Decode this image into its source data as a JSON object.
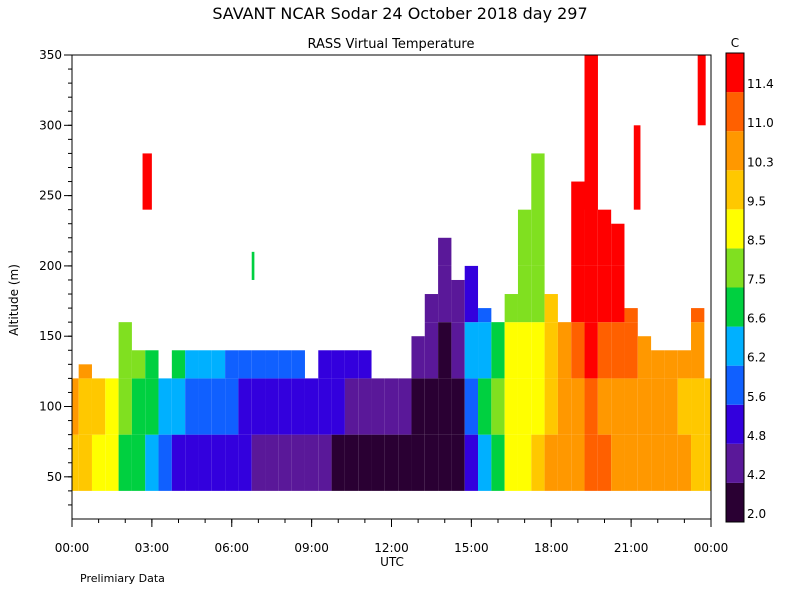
{
  "chart_data": {
    "type": "heatmap",
    "title": "SAVANT  NCAR Sodar  24 October 2018  day 297",
    "subtitle": "RASS Virtual Temperature",
    "xlabel": "UTC",
    "ylabel": "Altitude (m)",
    "footnote": "Prelimiary Data",
    "x_ticks": [
      "00:00",
      "03:00",
      "06:00",
      "09:00",
      "12:00",
      "15:00",
      "18:00",
      "21:00",
      "00:00"
    ],
    "xlim_hours": [
      0,
      24
    ],
    "y_ticks": [
      "50",
      "100",
      "150",
      "200",
      "250",
      "300",
      "350"
    ],
    "ylim": [
      20,
      350
    ],
    "colorbar": {
      "unit": "C",
      "labels": [
        "2.0",
        "4.2",
        "4.8",
        "5.6",
        "6.2",
        "6.6",
        "7.5",
        "8.5",
        "9.5",
        "10.3",
        "11.0",
        "11.4"
      ],
      "colors": [
        "#2a0033",
        "#5a1899",
        "#3300dd",
        "#1060ff",
        "#00b0ff",
        "#00d040",
        "#80e020",
        "#ffff00",
        "#ffc800",
        "#ff9800",
        "#ff6000",
        "#ff0000"
      ]
    },
    "grid": false,
    "columns_2h": [
      {
        "t": 0.0,
        "top": 120,
        "temps": [
          9.8,
          10.6,
          11.0,
          10.8
        ]
      },
      {
        "t": 0.5,
        "top": 130,
        "temps": [
          9.8,
          10.0,
          10.6,
          10.3
        ]
      },
      {
        "t": 1.0,
        "top": 120,
        "temps": [
          9.0,
          9.6,
          10.0,
          10.3
        ]
      },
      {
        "t": 1.5,
        "top": 120,
        "temps": [
          8.6,
          9.3,
          9.8,
          10.3
        ]
      },
      {
        "t": 2.0,
        "top": 160,
        "temps": [
          7.2,
          7.8,
          8.3,
          8.0
        ]
      },
      {
        "t": 2.5,
        "top": 140,
        "temps": [
          6.8,
          7.2,
          7.6,
          7.8
        ]
      },
      {
        "t": 3.0,
        "top": 140,
        "temps": [
          6.5,
          6.7,
          7.0,
          7.5
        ]
      },
      {
        "t": 3.5,
        "top": 120,
        "temps": [
          5.8,
          6.5,
          6.8,
          7.2
        ]
      },
      {
        "t": 4.0,
        "top": 140,
        "temps": [
          5.4,
          6.4,
          6.6,
          7.0
        ]
      },
      {
        "t": 4.5,
        "top": 140,
        "temps": [
          5.2,
          6.1,
          6.4,
          6.8
        ]
      },
      {
        "t": 5.0,
        "top": 140,
        "temps": [
          5.0,
          5.9,
          6.2,
          6.6
        ]
      },
      {
        "t": 5.5,
        "top": 140,
        "temps": [
          4.9,
          5.7,
          6.2,
          6.6
        ]
      },
      {
        "t": 6.0,
        "top": 140,
        "temps": [
          4.8,
          5.6,
          6.0,
          6.4
        ]
      },
      {
        "t": 6.5,
        "top": 140,
        "temps": [
          4.8,
          5.4,
          5.9,
          6.3
        ]
      },
      {
        "t": 7.0,
        "top": 140,
        "temps": [
          4.7,
          5.3,
          5.8,
          6.2
        ]
      },
      {
        "t": 7.5,
        "top": 140,
        "temps": [
          4.6,
          5.2,
          5.8,
          6.2
        ]
      },
      {
        "t": 8.0,
        "top": 140,
        "temps": [
          4.5,
          5.1,
          5.7,
          6.2
        ]
      },
      {
        "t": 8.5,
        "top": 140,
        "temps": [
          4.4,
          5.0,
          5.6,
          6.1
        ]
      },
      {
        "t": 9.0,
        "top": 120,
        "temps": [
          4.3,
          4.9,
          5.4,
          6.0
        ]
      },
      {
        "t": 9.5,
        "top": 140,
        "temps": [
          4.3,
          4.9,
          5.3,
          5.9
        ]
      },
      {
        "t": 10.0,
        "top": 140,
        "temps": [
          3.8,
          4.8,
          5.2,
          5.8
        ]
      },
      {
        "t": 10.5,
        "top": 140,
        "temps": [
          3.6,
          4.7,
          5.1,
          5.7
        ]
      },
      {
        "t": 11.0,
        "top": 140,
        "temps": [
          3.2,
          4.5,
          5.0,
          5.6
        ]
      },
      {
        "t": 11.5,
        "top": 120,
        "temps": [
          3.0,
          4.4,
          4.9,
          5.5
        ]
      },
      {
        "t": 12.0,
        "top": 120,
        "temps": [
          2.8,
          4.4,
          4.6,
          5.0
        ]
      },
      {
        "t": 12.5,
        "top": 120,
        "temps": [
          2.6,
          4.3,
          4.5,
          4.6
        ]
      },
      {
        "t": 13.0,
        "top": 150,
        "temps": [
          2.4,
          3.6,
          4.5,
          5.0
        ]
      },
      {
        "t": 13.5,
        "top": 180,
        "temps": [
          2.3,
          2.8,
          4.4,
          4.6
        ]
      },
      {
        "t": 14.0,
        "top": 220,
        "temps": [
          2.2,
          2.6,
          3.8,
          4.4
        ]
      },
      {
        "t": 14.5,
        "top": 190,
        "temps": [
          2.4,
          3.0,
          4.3,
          4.5
        ]
      },
      {
        "t": 15.0,
        "top": 200,
        "temps": [
          5.2,
          5.8,
          6.2,
          5.0
        ]
      },
      {
        "t": 15.5,
        "top": 170,
        "temps": [
          6.4,
          7.0,
          6.4,
          6.0
        ]
      },
      {
        "t": 16.0,
        "top": 160,
        "temps": [
          7.0,
          7.8,
          6.6,
          6.8
        ]
      },
      {
        "t": 16.5,
        "top": 180,
        "temps": [
          8.6,
          8.9,
          9.2,
          7.6
        ]
      },
      {
        "t": 17.0,
        "top": 240,
        "temps": [
          9.3,
          9.0,
          8.8,
          8.0
        ]
      },
      {
        "t": 17.5,
        "top": 280,
        "temps": [
          9.8,
          9.4,
          9.0,
          8.2
        ]
      },
      {
        "t": 18.0,
        "top": 180,
        "temps": [
          10.4,
          10.0,
          9.6,
          9.6
        ]
      },
      {
        "t": 18.5,
        "top": 160,
        "temps": [
          10.6,
          10.4,
          10.5,
          11.2
        ]
      },
      {
        "t": 19.0,
        "top": 260,
        "temps": [
          10.8,
          10.6,
          11.2,
          11.6
        ]
      },
      {
        "t": 19.5,
        "top": 350,
        "temps": [
          11.2,
          11.0,
          11.6,
          11.6
        ]
      },
      {
        "t": 20.0,
        "top": 240,
        "temps": [
          11.0,
          10.8,
          11.2,
          11.6
        ]
      },
      {
        "t": 20.5,
        "top": 230,
        "temps": [
          10.8,
          10.6,
          11.0,
          11.4
        ]
      },
      {
        "t": 21.0,
        "top": 170,
        "temps": [
          10.8,
          10.6,
          11.0,
          11.2
        ]
      },
      {
        "t": 21.5,
        "top": 150,
        "temps": [
          10.9,
          10.7,
          10.9,
          11.0
        ]
      },
      {
        "t": 22.0,
        "top": 140,
        "temps": [
          10.8,
          10.6,
          10.8,
          10.8
        ]
      },
      {
        "t": 22.5,
        "top": 140,
        "temps": [
          10.6,
          10.5,
          10.6,
          10.8
        ]
      },
      {
        "t": 23.0,
        "top": 140,
        "temps": [
          10.4,
          10.2,
          10.5,
          10.8
        ]
      },
      {
        "t": 23.5,
        "top": 170,
        "temps": [
          10.1,
          10.0,
          10.4,
          11.2
        ]
      },
      {
        "t": 24.0,
        "top": 120,
        "temps": [
          9.8,
          9.8,
          10.2,
          10.6
        ]
      }
    ],
    "isolated_patches": [
      {
        "t0": 2.65,
        "t1": 3.0,
        "z0": 240,
        "z1": 280,
        "temp": 11.6
      },
      {
        "t0": 19.25,
        "t1": 19.75,
        "z0": 240,
        "z1": 350,
        "temp": 11.6
      },
      {
        "t0": 21.1,
        "t1": 21.35,
        "z0": 240,
        "z1": 300,
        "temp": 11.6
      },
      {
        "t0": 23.5,
        "t1": 23.8,
        "z0": 300,
        "z1": 350,
        "temp": 11.6
      },
      {
        "t0": 6.75,
        "t1": 6.85,
        "z0": 190,
        "z1": 210,
        "temp": 6.6
      }
    ]
  }
}
